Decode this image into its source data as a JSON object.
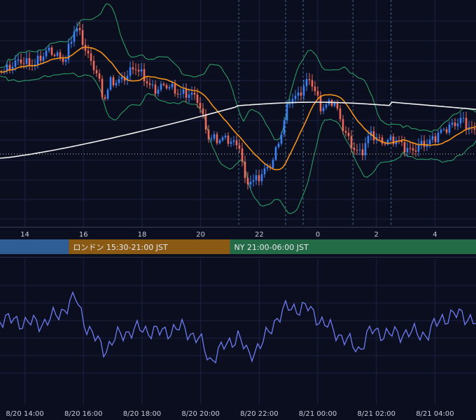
{
  "chart_data": [
    {
      "type": "candlestick",
      "x_tick_labels": [
        "14",
        "16",
        "18",
        "20",
        "22",
        "0",
        "2",
        "4"
      ],
      "x_tick_hours": [
        14,
        16,
        18,
        20,
        22,
        24,
        26,
        28
      ],
      "x_range_hours": [
        13.15,
        29.4
      ],
      "overlays": [
        "Bollinger Bands",
        "Moving average (orange)",
        "Moving average (white)"
      ],
      "colors": {
        "up": "#3b82f6",
        "down": "#ef6a5a",
        "bollinger": "#2fa86a",
        "ma_orange": "#f0921e",
        "ma_white": "#f2f2f2",
        "current_price_line": "#c8c8c8"
      },
      "session_bands": [
        {
          "label": "",
          "start": 13.15,
          "end": 15.5,
          "color": "#2f5e96"
        },
        {
          "label": "ロンドン 15:30-21:00 JST",
          "start": 15.5,
          "end": 21.0,
          "color": "#8a5a14"
        },
        {
          "label": "NY 21:00-06:00 JST",
          "start": 21.0,
          "end": 29.4,
          "color": "#236b47"
        }
      ],
      "event_lines_hours": [
        21.3,
        22.9,
        23.5,
        25.2,
        26.5
      ]
    },
    {
      "type": "line",
      "series_color": "#6f7cf0",
      "x_tick_labels": [
        "8/20 14:00",
        "8/20 16:00",
        "8/20 18:00",
        "8/20 20:00",
        "8/20 22:00",
        "8/21 00:00",
        "8/21 02:00",
        "8/21 04:00"
      ],
      "x_tick_hours": [
        14,
        16,
        18,
        20,
        22,
        24,
        26,
        28
      ]
    }
  ]
}
